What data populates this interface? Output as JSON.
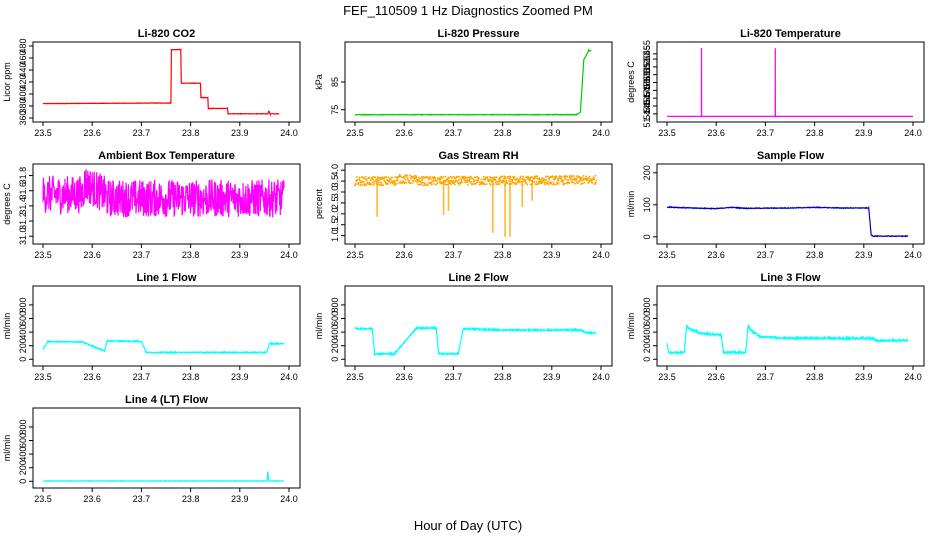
{
  "figure": {
    "title": "FEF_110509  1 Hz Diagnostics Zoomed PM",
    "xlabel": "Hour of Day (UTC)"
  },
  "chart_data": [
    {
      "type": "line",
      "title": "Li-820 CO2",
      "ylabel": "Licor ppm",
      "color": "#ff0000",
      "xlim": [
        23.5,
        24.0
      ],
      "ylim": [
        360,
        480
      ],
      "xticks": [
        "23.5",
        "23.6",
        "23.7",
        "23.8",
        "23.9",
        "24.0"
      ],
      "yticks": [
        "360",
        "380",
        "400",
        "420",
        "440",
        "460",
        "480"
      ],
      "noise": 0.3,
      "series": [
        {
          "x": [
            23.5,
            23.76,
            23.761,
            23.78,
            23.781,
            23.82,
            23.821,
            23.835,
            23.836,
            23.875,
            23.876,
            23.957,
            23.959,
            23.962,
            23.964,
            23.98
          ],
          "y": [
            384,
            385,
            474,
            474,
            418,
            418,
            394,
            394,
            376,
            376,
            367,
            367,
            372,
            366,
            367,
            367
          ]
        }
      ]
    },
    {
      "type": "line",
      "title": "Li-820 Pressure",
      "ylabel": "kPa",
      "color": "#00cc00",
      "xlim": [
        23.5,
        24.0
      ],
      "ylim": [
        72,
        98
      ],
      "xticks": [
        "23.5",
        "23.6",
        "23.7",
        "23.8",
        "23.9",
        "24.0"
      ],
      "yticks": [
        "75",
        "85"
      ],
      "noise": 0.1,
      "series": [
        {
          "x": [
            23.5,
            23.95,
            23.958,
            23.965,
            23.975,
            23.98
          ],
          "y": [
            73.2,
            73.2,
            74,
            93,
            96.3,
            96.3
          ]
        }
      ]
    },
    {
      "type": "line",
      "title": "Li-820 Temperature",
      "ylabel": "degrees C",
      "color": "#ff00ff",
      "xlim": [
        23.5,
        24.0
      ],
      "ylim": [
        51.432,
        51.57
      ],
      "xticks": [
        "23.5",
        "23.6",
        "23.7",
        "23.8",
        "23.9",
        "24.0"
      ],
      "yticks": [
        "51.440",
        "51.455",
        "51.470",
        "51.485",
        "51.500",
        "51.515",
        "51.530",
        "51.545",
        "51.555"
      ],
      "noise": 0,
      "series": [
        {
          "x": [
            23.5,
            23.57,
            23.5701,
            23.5702,
            23.5703,
            23.72,
            23.7201,
            23.7202,
            23.7203,
            24.0
          ],
          "y": [
            51.435,
            51.435,
            51.566,
            51.566,
            51.435,
            51.435,
            51.566,
            51.566,
            51.435,
            51.435
          ]
        }
      ]
    },
    {
      "type": "line",
      "title": "Ambient Box Temperature",
      "ylabel": "degrees C",
      "color": "#ff00ff",
      "xlim": [
        23.5,
        24.0
      ],
      "ylim": [
        30.95,
        31.9
      ],
      "xticks": [
        "23.5",
        "23.6",
        "23.7",
        "23.8",
        "23.9",
        "24.0"
      ],
      "yticks": [
        "31.0",
        "31.2",
        "31.4",
        "31.6",
        "31.8"
      ],
      "noise": 0.25,
      "series": [
        {
          "x": [
            23.5,
            23.58,
            23.585,
            23.625,
            23.63,
            23.99
          ],
          "y": [
            31.55,
            31.55,
            31.7,
            31.55,
            31.5,
            31.5
          ]
        }
      ]
    },
    {
      "type": "scatter",
      "title": "Gas Stream RH",
      "ylabel": "percent",
      "color": "#ffa500",
      "xlim": [
        23.5,
        24.0
      ],
      "ylim": [
        0.8,
        4.1
      ],
      "xticks": [
        "23.5",
        "23.6",
        "23.7",
        "23.8",
        "23.9",
        "24.0"
      ],
      "yticks": [
        "1.0",
        "1.5",
        "2.0",
        "2.5",
        "3.0",
        "3.5",
        "4.0"
      ],
      "noise": 0.2,
      "series": [
        {
          "x": [
            23.5,
            23.58,
            23.59,
            23.625,
            23.63,
            23.99
          ],
          "y": [
            3.5,
            3.5,
            3.6,
            3.55,
            3.5,
            3.55
          ]
        }
      ],
      "dips": [
        {
          "x": 23.545,
          "y": 1.9
        },
        {
          "x": 23.68,
          "y": 2.0
        },
        {
          "x": 23.69,
          "y": 2.2
        },
        {
          "x": 23.78,
          "y": 1.2
        },
        {
          "x": 23.805,
          "y": 0.95
        },
        {
          "x": 23.815,
          "y": 0.95
        },
        {
          "x": 23.84,
          "y": 2.4
        },
        {
          "x": 23.86,
          "y": 2.6
        }
      ]
    },
    {
      "type": "line",
      "title": "Sample Flow",
      "ylabel": "ml/min",
      "color": "#0000cc",
      "xlim": [
        23.5,
        24.0
      ],
      "ylim": [
        -10,
        215
      ],
      "xticks": [
        "23.5",
        "23.6",
        "23.7",
        "23.8",
        "23.9",
        "24.0"
      ],
      "yticks": [
        "0",
        "100",
        "200"
      ],
      "noise": 1,
      "series": [
        {
          "x": [
            23.5,
            23.55,
            23.6,
            23.63,
            23.66,
            23.75,
            23.8,
            23.855,
            23.91,
            23.915,
            23.92,
            23.99
          ],
          "y": [
            93,
            90,
            88,
            92,
            89,
            90,
            92,
            90,
            90,
            5,
            2,
            2
          ]
        }
      ]
    },
    {
      "type": "line",
      "title": "Line 1 Flow",
      "ylabel": "ml/min",
      "color": "#00ffff",
      "xlim": [
        23.5,
        24.0
      ],
      "ylim": [
        -40,
        1020
      ],
      "xticks": [
        "23.5",
        "23.6",
        "23.7",
        "23.8",
        "23.9",
        "24.0"
      ],
      "yticks": [
        "0",
        "200",
        "400",
        "600",
        "800"
      ],
      "noise": 8,
      "series": [
        {
          "x": [
            23.5,
            23.51,
            23.58,
            23.625,
            23.63,
            23.7,
            23.71,
            23.955,
            23.96,
            23.99
          ],
          "y": [
            150,
            260,
            255,
            120,
            270,
            265,
            100,
            100,
            230,
            230
          ]
        }
      ]
    },
    {
      "type": "line",
      "title": "Line 2 Flow",
      "ylabel": "ml/min",
      "color": "#00ffff",
      "xlim": [
        23.5,
        24.0
      ],
      "ylim": [
        -40,
        1020
      ],
      "xticks": [
        "23.5",
        "23.6",
        "23.7",
        "23.8",
        "23.9",
        "24.0"
      ],
      "yticks": [
        "0",
        "200",
        "400",
        "600",
        "800"
      ],
      "noise": 12,
      "series": [
        {
          "x": [
            23.5,
            23.535,
            23.54,
            23.58,
            23.625,
            23.665,
            23.67,
            23.71,
            23.72,
            23.8,
            23.96,
            23.97,
            23.99
          ],
          "y": [
            450,
            450,
            80,
            80,
            460,
            460,
            80,
            80,
            450,
            430,
            430,
            390,
            390
          ]
        }
      ]
    },
    {
      "type": "line",
      "title": "Line 3 Flow",
      "ylabel": "ml/min",
      "color": "#00ffff",
      "xlim": [
        23.5,
        24.0
      ],
      "ylim": [
        -40,
        1020
      ],
      "xticks": [
        "23.5",
        "23.6",
        "23.7",
        "23.8",
        "23.9",
        "24.0"
      ],
      "yticks": [
        "0",
        "200",
        "400",
        "600",
        "800"
      ],
      "noise": 15,
      "series": [
        {
          "x": [
            23.5,
            23.503,
            23.51,
            23.535,
            23.54,
            23.545,
            23.57,
            23.61,
            23.615,
            23.66,
            23.665,
            23.67,
            23.69,
            23.75,
            23.92,
            23.925,
            23.99
          ],
          "y": [
            250,
            100,
            100,
            100,
            500,
            450,
            380,
            360,
            100,
            100,
            500,
            430,
            330,
            310,
            310,
            270,
            280
          ]
        }
      ]
    },
    {
      "type": "line",
      "title": "Line 4 (LT) Flow",
      "ylabel": "ml/min",
      "color": "#00ffff",
      "xlim": [
        23.5,
        24.0
      ],
      "ylim": [
        -40,
        1020
      ],
      "xticks": [
        "23.5",
        "23.6",
        "23.7",
        "23.8",
        "23.9",
        "24.0"
      ],
      "yticks": [
        "0",
        "200",
        "400",
        "600",
        "800"
      ],
      "noise": 3,
      "series": [
        {
          "x": [
            23.5,
            23.955,
            23.957,
            23.959,
            23.99
          ],
          "y": [
            5,
            5,
            140,
            5,
            5
          ]
        }
      ]
    }
  ]
}
